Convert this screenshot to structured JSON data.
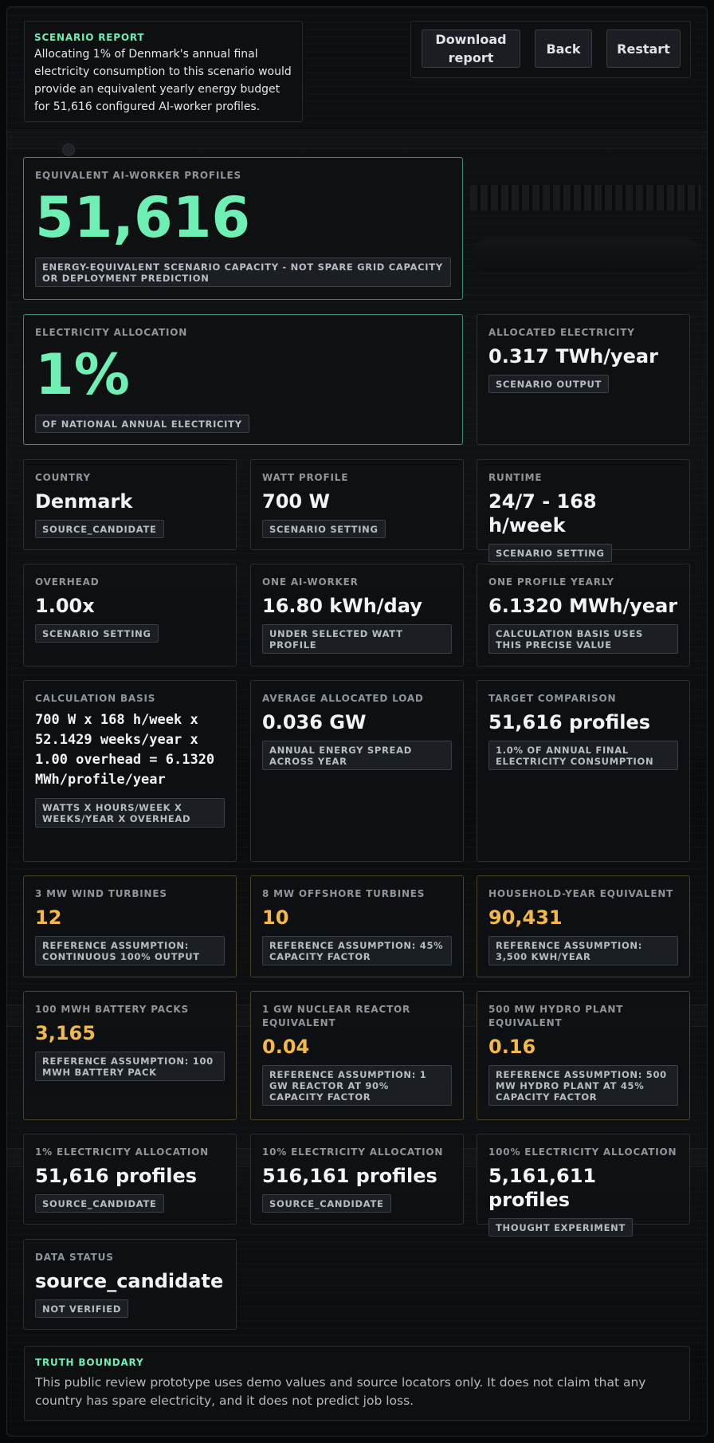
{
  "report": {
    "title": "SCENARIO REPORT",
    "body": "Allocating 1% of Denmark's annual final electricity consumption to this scenario would provide an equivalent yearly energy budget for 51,616 configured AI-worker profiles."
  },
  "buttons": {
    "download": "Download report",
    "back": "Back",
    "restart": "Restart"
  },
  "hero": {
    "label": "EQUIVALENT AI-WORKER PROFILES",
    "value": "51,616",
    "note": "ENERGY-EQUIVALENT SCENARIO CAPACITY - NOT SPARE GRID CAPACITY OR DEPLOYMENT PREDICTION"
  },
  "allocation": {
    "label": "ELECTRICITY ALLOCATION",
    "value": "1%",
    "note": "OF NATIONAL ANNUAL ELECTRICITY"
  },
  "allocated": {
    "label": "ALLOCATED ELECTRICITY",
    "value": "0.317 TWh/year",
    "tag": "SCENARIO OUTPUT"
  },
  "settings": [
    {
      "label": "COUNTRY",
      "value": "Denmark",
      "tag": "SOURCE_CANDIDATE"
    },
    {
      "label": "WATT PROFILE",
      "value": "700 W",
      "tag": "SCENARIO SETTING"
    },
    {
      "label": "RUNTIME",
      "value": "24/7 - 168 h/week",
      "tag": "SCENARIO SETTING"
    },
    {
      "label": "OVERHEAD",
      "value": "1.00x",
      "tag": "SCENARIO SETTING"
    },
    {
      "label": "ONE AI-WORKER",
      "value": "16.80 kWh/day",
      "tag": "UNDER SELECTED WATT PROFILE"
    },
    {
      "label": "ONE PROFILE YEARLY",
      "value": "6.1320 MWh/year",
      "tag": "CALCULATION BASIS USES THIS PRECISE VALUE"
    }
  ],
  "calc": {
    "label": "CALCULATION BASIS",
    "formula": "700 W x 168 h/week x 52.1429 weeks/year x 1.00 overhead = 6.1320 MWh/profile/year",
    "tag": "WATTS X HOURS/WEEK X WEEKS/YEAR X OVERHEAD"
  },
  "load": {
    "label": "AVERAGE ALLOCATED LOAD",
    "value": "0.036 GW",
    "tag": "ANNUAL ENERGY SPREAD ACROSS YEAR"
  },
  "target": {
    "label": "TARGET COMPARISON",
    "value": "51,616 profiles",
    "tag": "1.0% OF ANNUAL FINAL ELECTRICITY CONSUMPTION"
  },
  "equivalents": [
    {
      "label": "3 MW WIND TURBINES",
      "value": "12",
      "tag": "REFERENCE ASSUMPTION: CONTINUOUS 100% OUTPUT"
    },
    {
      "label": "8 MW OFFSHORE TURBINES",
      "value": "10",
      "tag": "REFERENCE ASSUMPTION: 45% CAPACITY FACTOR"
    },
    {
      "label": "HOUSEHOLD-YEAR EQUIVALENT",
      "value": "90,431",
      "tag": "REFERENCE ASSUMPTION: 3,500 KWH/YEAR"
    },
    {
      "label": "100 MWH BATTERY PACKS",
      "value": "3,165",
      "tag": "REFERENCE ASSUMPTION: 100 MWH BATTERY PACK"
    },
    {
      "label": "1 GW NUCLEAR REACTOR EQUIVALENT",
      "value": "0.04",
      "tag": "REFERENCE ASSUMPTION: 1 GW REACTOR AT 90% CAPACITY FACTOR"
    },
    {
      "label": "500 MW HYDRO PLANT EQUIVALENT",
      "value": "0.16",
      "tag": "REFERENCE ASSUMPTION: 500 MW HYDRO PLANT AT 45% CAPACITY FACTOR"
    }
  ],
  "scenarios": [
    {
      "label": "1% ELECTRICITY ALLOCATION",
      "value": "51,616 profiles",
      "tag": "SOURCE_CANDIDATE"
    },
    {
      "label": "10% ELECTRICITY ALLOCATION",
      "value": "516,161 profiles",
      "tag": "SOURCE_CANDIDATE"
    },
    {
      "label": "100% ELECTRICITY ALLOCATION",
      "value": "5,161,611 profiles",
      "tag": "THOUGHT EXPERIMENT"
    }
  ],
  "status": {
    "label": "DATA STATUS",
    "value": "source_candidate",
    "tag": "NOT VERIFIED"
  },
  "truth": {
    "title": "TRUTH BOUNDARY",
    "body": "This public review prototype uses demo values and source locators only. It does not claim that any country has spare electricity, and it does not predict job loss."
  },
  "colors": {
    "accent_green": "#6ef0b4",
    "amber": "#f2b94a",
    "card_bg": "#0e1012"
  }
}
